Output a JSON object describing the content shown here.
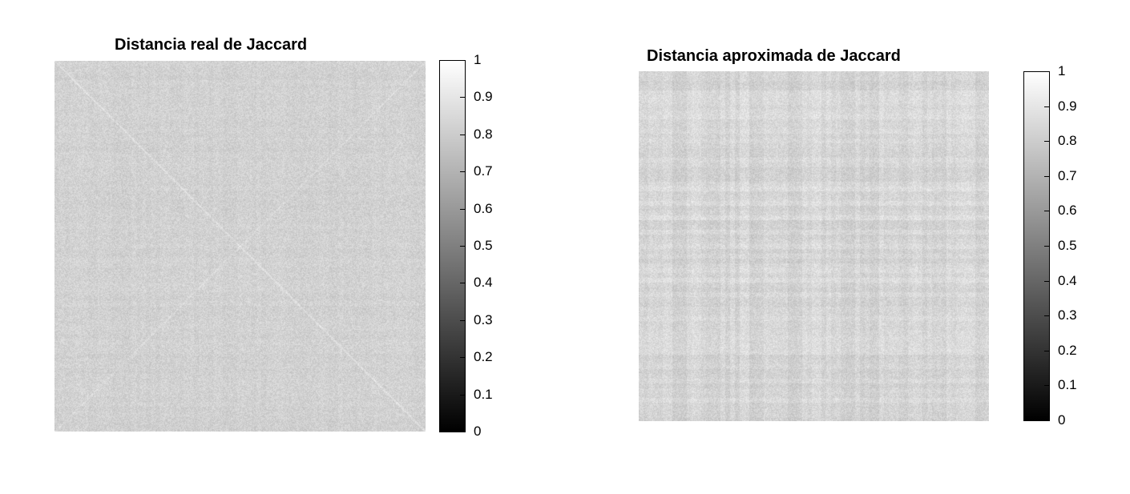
{
  "chart_data": [
    {
      "type": "heatmap",
      "title": "Distancia real de Jaccard",
      "xlabel": "",
      "ylabel": "",
      "colormap": "gray",
      "clim": [
        0,
        1
      ],
      "typical_value": 0.82,
      "structure": "dense noise with faint diagonal streaks",
      "colorbar_ticks": [
        "0",
        "0.1",
        "0.2",
        "0.3",
        "0.4",
        "0.5",
        "0.6",
        "0.7",
        "0.8",
        "0.9",
        "1"
      ]
    },
    {
      "type": "heatmap",
      "title": "Distancia aproximada de Jaccard",
      "xlabel": "",
      "ylabel": "",
      "colormap": "gray",
      "clim": [
        0,
        1
      ],
      "typical_value": 0.84,
      "structure": "dense noise with faint horizontal and vertical bands",
      "colorbar_ticks": [
        "0",
        "0.1",
        "0.2",
        "0.3",
        "0.4",
        "0.5",
        "0.6",
        "0.7",
        "0.8",
        "0.9",
        "1"
      ]
    }
  ]
}
